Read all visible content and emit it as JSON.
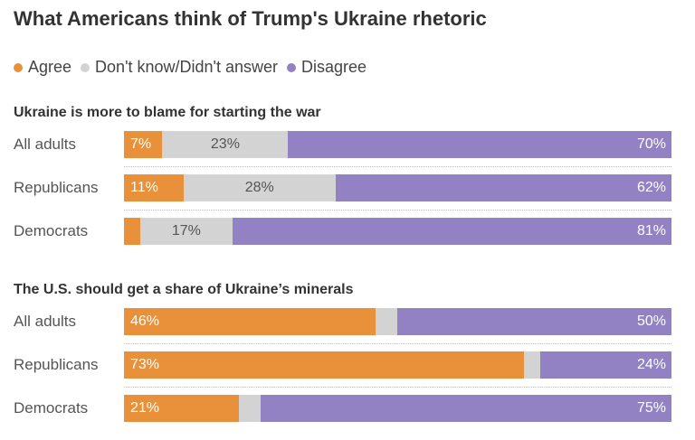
{
  "title": "What Americans think of Trump's Ukraine rhetoric",
  "legend": [
    {
      "label": "Agree",
      "color": "#e8913a"
    },
    {
      "label": "Don't know/Didn't answer",
      "color": "#d3d3d3"
    },
    {
      "label": "Disagree",
      "color": "#9281c3"
    }
  ],
  "chart_data": [
    {
      "type": "bar",
      "orientation": "horizontal-stacked",
      "title": "Ukraine is more to blame for starting the war",
      "categories": [
        "All adults",
        "Republicans",
        "Democrats"
      ],
      "series": [
        {
          "name": "Agree",
          "values": [
            7,
            11,
            3
          ],
          "labels": [
            "7%",
            "11%",
            ""
          ]
        },
        {
          "name": "Don't know/Didn't answer",
          "values": [
            23,
            28,
            17
          ],
          "labels": [
            "23%",
            "28%",
            "17%"
          ]
        },
        {
          "name": "Disagree",
          "values": [
            70,
            62,
            81
          ],
          "labels": [
            "70%",
            "62%",
            "81%"
          ]
        }
      ],
      "xlim": [
        0,
        100
      ]
    },
    {
      "type": "bar",
      "orientation": "horizontal-stacked",
      "title": "The U.S. should get a share of Ukraine’s minerals",
      "categories": [
        "All adults",
        "Republicans",
        "Democrats"
      ],
      "series": [
        {
          "name": "Agree",
          "values": [
            46,
            73,
            21
          ],
          "labels": [
            "46%",
            "73%",
            "21%"
          ]
        },
        {
          "name": "Don't know/Didn't answer",
          "values": [
            4,
            3,
            4
          ],
          "labels": [
            "",
            "",
            ""
          ]
        },
        {
          "name": "Disagree",
          "values": [
            50,
            24,
            75
          ],
          "labels": [
            "50%",
            "24%",
            "75%"
          ]
        }
      ],
      "xlim": [
        0,
        100
      ]
    }
  ]
}
